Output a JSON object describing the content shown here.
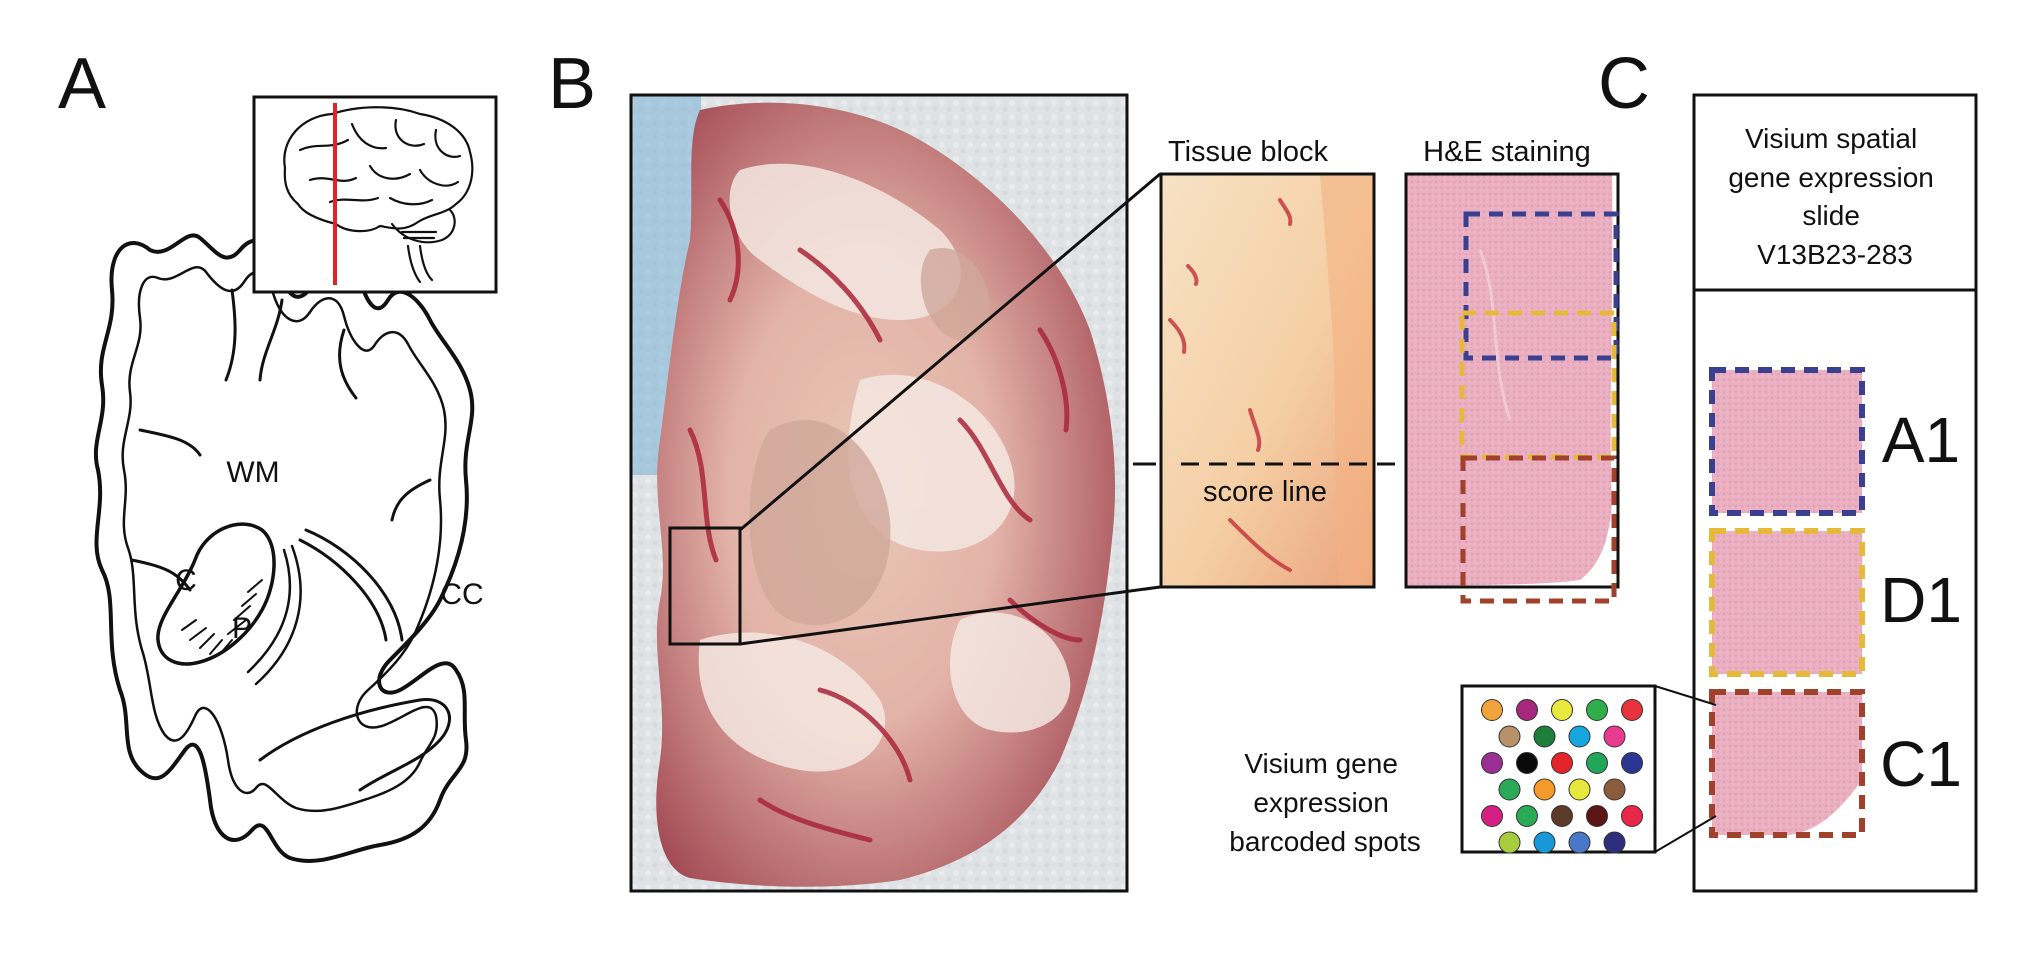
{
  "panels": {
    "a": {
      "letter": "A",
      "labels": {
        "wm": "WM",
        "c": "C",
        "p": "P",
        "cc": "CC"
      }
    },
    "b": {
      "letter": "B",
      "tissue_block": "Tissue block",
      "he_staining": "H&E staining",
      "score_line": "score line"
    },
    "c": {
      "letter": "C",
      "slide_title": [
        "Visium spatial",
        "gene expression",
        "slide",
        "V13B23-283"
      ],
      "captures": [
        "A1",
        "D1",
        "C1"
      ],
      "spots_caption": [
        "Visium gene",
        "expression",
        "barcoded spots"
      ]
    }
  },
  "colors": {
    "a1_box": "#3b3f8f",
    "d1_box": "#e7b93a",
    "c1_box": "#a2412b",
    "insert_line": "#e02424",
    "he_tissue": "#e9a9bd"
  },
  "spot_colors": [
    [
      "#f1a33c",
      "#a6287d",
      "#e7e93f",
      "#2fae4a",
      "#e8323c"
    ],
    [
      "#b7916a",
      "#1d7d3b",
      "#16a6e0",
      "#e83a8f"
    ],
    [
      "#9a2f93",
      "#0a0a0a",
      "#e5232a",
      "#22a65a",
      "#2b3592"
    ],
    [
      "#2aa957",
      "#f39a2a",
      "#e6e93c",
      "#8a5c3c"
    ],
    [
      "#d61f84",
      "#2aa957",
      "#5a3b28",
      "#5c1414",
      "#e8264b"
    ],
    [
      "#a7cd3c",
      "#1798d8",
      "#4a78c8",
      "#2f2e7c"
    ]
  ]
}
